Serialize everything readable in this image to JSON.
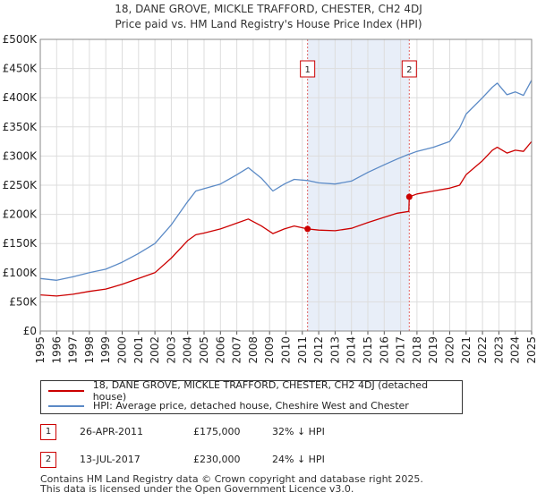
{
  "chart_data": {
    "type": "line",
    "title": "18, DANE GROVE, MICKLE TRAFFORD, CHESTER, CH2 4DJ",
    "subtitle": "Price paid vs. HM Land Registry's House Price Index (HPI)",
    "xlim": [
      1995,
      2025
    ],
    "ylim": [
      0,
      500000
    ],
    "x_ticks": [
      "1995",
      "1996",
      "1997",
      "1998",
      "1999",
      "2000",
      "2001",
      "2002",
      "2003",
      "2004",
      "2005",
      "2006",
      "2007",
      "2008",
      "2009",
      "2010",
      "2011",
      "2012",
      "2013",
      "2014",
      "2015",
      "2016",
      "2017",
      "2018",
      "2019",
      "2020",
      "2021",
      "2022",
      "2023",
      "2024",
      "2025"
    ],
    "y_ticks": [
      {
        "value": 0,
        "label": "£0"
      },
      {
        "value": 50000,
        "label": "£50K"
      },
      {
        "value": 100000,
        "label": "£100K"
      },
      {
        "value": 150000,
        "label": "£150K"
      },
      {
        "value": 200000,
        "label": "£200K"
      },
      {
        "value": 250000,
        "label": "£250K"
      },
      {
        "value": 300000,
        "label": "£300K"
      },
      {
        "value": 350000,
        "label": "£350K"
      },
      {
        "value": 400000,
        "label": "£400K"
      },
      {
        "value": 450000,
        "label": "£450K"
      },
      {
        "value": 500000,
        "label": "£500K"
      }
    ],
    "series": [
      {
        "name": "18, DANE GROVE, MICKLE TRAFFORD, CHESTER, CH2 4DJ (detached house)",
        "color": "#cc0000",
        "x": [
          1995,
          1996,
          1997,
          1998,
          1999,
          2000,
          2001,
          2002,
          2003,
          2004,
          2004.5,
          2005,
          2006,
          2007,
          2007.7,
          2008.5,
          2009.2,
          2009.9,
          2010.5,
          2011.32,
          2012,
          2013,
          2014,
          2015,
          2016,
          2016.8,
          2017.5,
          2017.53,
          2018,
          2019,
          2020,
          2020.6,
          2021,
          2022,
          2022.6,
          2022.9,
          2023.5,
          2024,
          2024.5,
          2025
        ],
        "values": [
          62000,
          60000,
          63000,
          68000,
          72000,
          80000,
          90000,
          100000,
          125000,
          155000,
          165000,
          168000,
          175000,
          185000,
          192000,
          180000,
          167000,
          175000,
          180000,
          175000,
          173000,
          172000,
          176000,
          186000,
          195000,
          202000,
          205000,
          230000,
          235000,
          240000,
          245000,
          250000,
          268000,
          292000,
          310000,
          315000,
          305000,
          310000,
          308000,
          325000
        ]
      },
      {
        "name": "HPI: Average price, detached house, Cheshire West and Chester",
        "color": "#5b8ac6",
        "x": [
          1995,
          1996,
          1997,
          1998,
          1999,
          2000,
          2001,
          2002,
          2003,
          2004,
          2004.5,
          2005,
          2006,
          2007,
          2007.7,
          2008.5,
          2009.2,
          2009.9,
          2010.5,
          2011.32,
          2012,
          2013,
          2014,
          2015,
          2016,
          2016.8,
          2017.5,
          2017.53,
          2018,
          2019,
          2020,
          2020.6,
          2021,
          2022,
          2022.6,
          2022.9,
          2023.5,
          2024,
          2024.5,
          2025
        ],
        "values": [
          90000,
          87000,
          93000,
          100000,
          106000,
          118000,
          133000,
          150000,
          182000,
          222000,
          240000,
          244000,
          252000,
          268000,
          280000,
          262000,
          240000,
          252000,
          260000,
          258000,
          254000,
          252000,
          257000,
          272000,
          285000,
          295000,
          303000,
          303000,
          308000,
          315000,
          325000,
          348000,
          372000,
          400000,
          418000,
          425000,
          405000,
          410000,
          404000,
          430000
        ]
      }
    ],
    "sales": [
      {
        "num": "1",
        "x": 2011.32,
        "price": 175000
      },
      {
        "num": "2",
        "x": 2017.53,
        "price": 230000
      }
    ]
  },
  "legend": {
    "series1": "18, DANE GROVE, MICKLE TRAFFORD, CHESTER, CH2 4DJ (detached house)",
    "series2": "HPI: Average price, detached house, Cheshire West and Chester"
  },
  "sales_table": [
    {
      "num": "1",
      "date": "26-APR-2011",
      "price": "£175,000",
      "hpi": "32% ↓ HPI"
    },
    {
      "num": "2",
      "date": "13-JUL-2017",
      "price": "£230,000",
      "hpi": "24% ↓ HPI"
    }
  ],
  "footer": {
    "line1": "Contains HM Land Registry data © Crown copyright and database right 2025.",
    "line2": "This data is licensed under the Open Government Licence v3.0."
  },
  "colors": {
    "red": "#cc0000",
    "blue": "#5b8ac6",
    "grid": "#dddddd",
    "shade": "#e8eef8"
  }
}
